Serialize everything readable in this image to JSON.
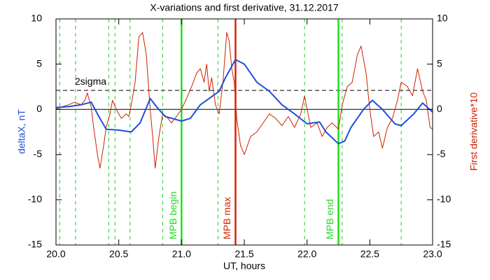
{
  "chart_data": {
    "type": "line",
    "title": "X-variations and first derivative, 31.12.2017",
    "xlabel": "UT, hours",
    "ylabel": "deltaX, nT",
    "y2label": "First derivative*10",
    "xlim": [
      20,
      23
    ],
    "xticks": [
      {
        "value": 20,
        "label": "20.0"
      },
      20.5,
      {
        "value": 21,
        "label": "21.0"
      },
      21.5,
      {
        "value": 22,
        "label": "22.0"
      },
      22.5,
      {
        "value": 23,
        "label": "23.0"
      }
    ],
    "ylim": [
      -15,
      10
    ],
    "yticks": [
      -15,
      -10,
      -5,
      0,
      5,
      10
    ],
    "y2lim": [
      -15,
      10
    ],
    "y2ticks": [
      -15,
      -10,
      -5,
      0,
      5,
      10
    ],
    "grid": false,
    "series": [
      {
        "color": "#1f4fd6",
        "width": 2,
        "x": [
          20.0,
          20.1,
          20.2,
          20.28,
          20.33,
          20.4,
          20.5,
          20.6,
          20.67,
          20.75,
          20.8,
          20.87,
          20.95,
          21.0,
          21.07,
          21.15,
          21.22,
          21.3,
          21.35,
          21.43,
          21.5,
          21.6,
          21.7,
          21.8,
          21.9,
          22.0,
          22.1,
          22.15,
          22.25,
          22.3,
          22.35,
          22.45,
          22.52,
          22.6,
          22.7,
          22.75,
          22.85,
          22.92,
          23.0
        ],
        "values": [
          0.2,
          0.3,
          0.5,
          0.8,
          -0.5,
          -2.2,
          -2.3,
          -2.5,
          -1.5,
          1.2,
          0.3,
          -0.8,
          -1.1,
          -1.3,
          -1.0,
          0.5,
          1.2,
          2.0,
          3.5,
          5.5,
          5.0,
          3.0,
          2.0,
          0.5,
          -0.5,
          -1.6,
          -1.4,
          -2.5,
          -3.8,
          -3.5,
          -2.0,
          0.0,
          1.0,
          0.0,
          -1.6,
          -1.8,
          -0.5,
          0.7,
          -0.3
        ]
      },
      {
        "color": "#cc2200",
        "width": 1,
        "axis": "y2",
        "x": [
          20.0,
          20.05,
          20.1,
          20.15,
          20.2,
          20.23,
          20.25,
          20.28,
          20.3,
          20.33,
          20.35,
          20.38,
          20.4,
          20.43,
          20.45,
          20.48,
          20.52,
          20.56,
          20.58,
          20.6,
          20.63,
          20.66,
          20.69,
          20.72,
          20.75,
          20.77,
          20.79,
          20.82,
          20.85,
          20.88,
          20.92,
          20.96,
          21.0,
          21.04,
          21.08,
          21.12,
          21.15,
          21.18,
          21.2,
          21.22,
          21.24,
          21.27,
          21.3,
          21.33,
          21.36,
          21.38,
          21.4,
          21.42,
          21.44,
          21.47,
          21.5,
          21.55,
          21.6,
          21.65,
          21.7,
          21.75,
          21.8,
          21.85,
          21.9,
          21.95,
          21.98,
          22.0,
          22.03,
          22.08,
          22.12,
          22.16,
          22.2,
          22.25,
          22.28,
          22.32,
          22.36,
          22.4,
          22.43,
          22.47,
          22.5,
          22.53,
          22.57,
          22.6,
          22.64,
          22.68,
          22.72,
          22.75,
          22.8,
          22.84,
          22.88,
          22.92,
          22.95,
          22.98,
          23.0
        ],
        "values": [
          0.0,
          0.3,
          0.5,
          0.8,
          0.5,
          1.0,
          1.8,
          0.3,
          -2.0,
          -5.0,
          -6.5,
          -4.0,
          -2.0,
          -0.5,
          1.0,
          0.0,
          -1.0,
          -0.5,
          -0.8,
          0.5,
          3.0,
          8.0,
          8.5,
          6.0,
          0.0,
          -3.0,
          -6.5,
          -3.0,
          -0.5,
          -0.8,
          -1.5,
          -0.8,
          0.0,
          1.2,
          2.5,
          4.0,
          4.5,
          3.0,
          5.0,
          2.0,
          3.5,
          0.5,
          -0.5,
          3.0,
          8.5,
          7.5,
          4.5,
          3.0,
          -1.0,
          -4.0,
          -5.0,
          -3.0,
          -2.5,
          -1.5,
          -0.5,
          -1.0,
          -1.8,
          -0.8,
          -2.0,
          -0.5,
          1.5,
          0.0,
          -2.0,
          -1.5,
          -3.0,
          -2.0,
          -1.5,
          -2.2,
          0.5,
          2.5,
          3.0,
          6.0,
          7.0,
          4.0,
          0.0,
          -3.0,
          -2.5,
          -4.3,
          -2.0,
          -1.0,
          1.0,
          3.0,
          2.5,
          1.5,
          4.5,
          2.0,
          1.0,
          -2.0,
          -2.2
        ]
      }
    ],
    "vlines": [
      {
        "x": 20.03,
        "color": "#22cc22",
        "dashed": true
      },
      {
        "x": 20.156,
        "color": "#22cc22",
        "dashed": true
      },
      {
        "x": 20.42,
        "color": "#22cc22",
        "dashed": true
      },
      {
        "x": 20.47,
        "color": "#22cc22",
        "dashed": true
      },
      {
        "x": 20.59,
        "color": "#22cc22",
        "dashed": true
      },
      {
        "x": 20.85,
        "color": "#22cc22",
        "dashed": true
      },
      {
        "x": 21.0,
        "color": "#22dd22",
        "dashed": false,
        "label": "MPB begin"
      },
      {
        "x": 21.29,
        "color": "#22cc22",
        "dashed": true
      },
      {
        "x": 21.43,
        "color": "#dd2200",
        "dashed": false,
        "label": "MPB max"
      },
      {
        "x": 21.98,
        "color": "#22cc22",
        "dashed": true
      },
      {
        "x": 22.25,
        "color": "#22dd22",
        "dashed": false,
        "label": "MPB end"
      },
      {
        "x": 22.28,
        "color": "#22cc22",
        "dashed": true
      },
      {
        "x": 22.75,
        "color": "#22cc22",
        "dashed": true
      }
    ],
    "hlines": [
      {
        "y": 2.1,
        "color": "#000000",
        "dashed": true,
        "label": "2sigma",
        "label_x": 20.15
      },
      {
        "y": 0,
        "color": "#000000",
        "dashed": false
      }
    ]
  }
}
